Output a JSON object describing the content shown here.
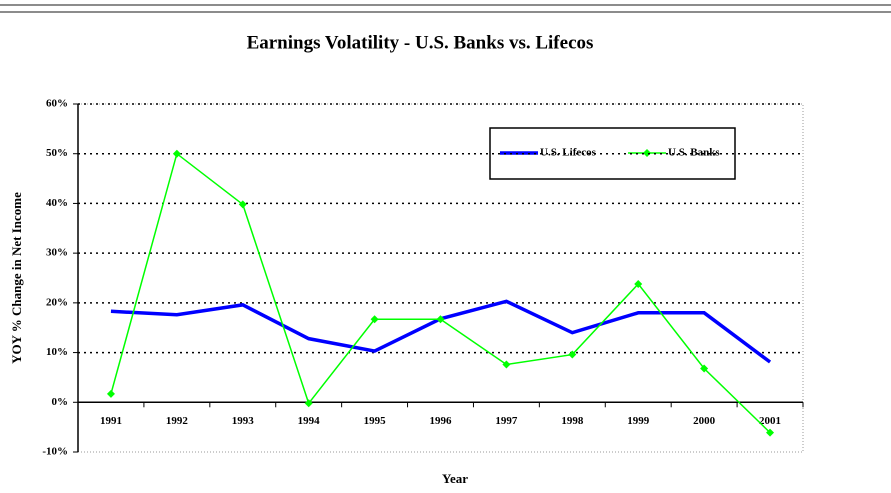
{
  "chart_data": {
    "type": "line",
    "title": "Earnings Volatility - U.S. Banks vs. Lifecos",
    "x_label": "Year",
    "y_label": "YOY % Change in Net Income",
    "categories": [
      "1991",
      "1992",
      "1993",
      "1994",
      "1995",
      "1996",
      "1997",
      "1998",
      "1999",
      "2000",
      "2001"
    ],
    "series": [
      {
        "name": "U.S. Lifecos",
        "color": "#0000ff",
        "marker": false,
        "values": [
          18.3,
          17.6,
          19.6,
          12.8,
          10.3,
          16.8,
          20.3,
          14.0,
          18.0,
          18.0,
          8.1
        ]
      },
      {
        "name": "U.S. Banks",
        "color": "#00ff00",
        "marker": true,
        "values": [
          1.7,
          50.0,
          39.8,
          -0.2,
          16.7,
          16.7,
          7.6,
          9.6,
          23.8,
          6.8,
          -6.1
        ]
      }
    ],
    "ylim": [
      -10,
      60
    ],
    "yticks": [
      {
        "value": -10,
        "label": "-10%"
      },
      {
        "value": 0,
        "label": "0%"
      },
      {
        "value": 10,
        "label": "10%"
      },
      {
        "value": 20,
        "label": "20%"
      },
      {
        "value": 30,
        "label": "30%"
      },
      {
        "value": 40,
        "label": "40%"
      },
      {
        "value": 50,
        "label": "50%"
      },
      {
        "value": 60,
        "label": "60%"
      }
    ],
    "grid": true,
    "legend": "top-right"
  }
}
